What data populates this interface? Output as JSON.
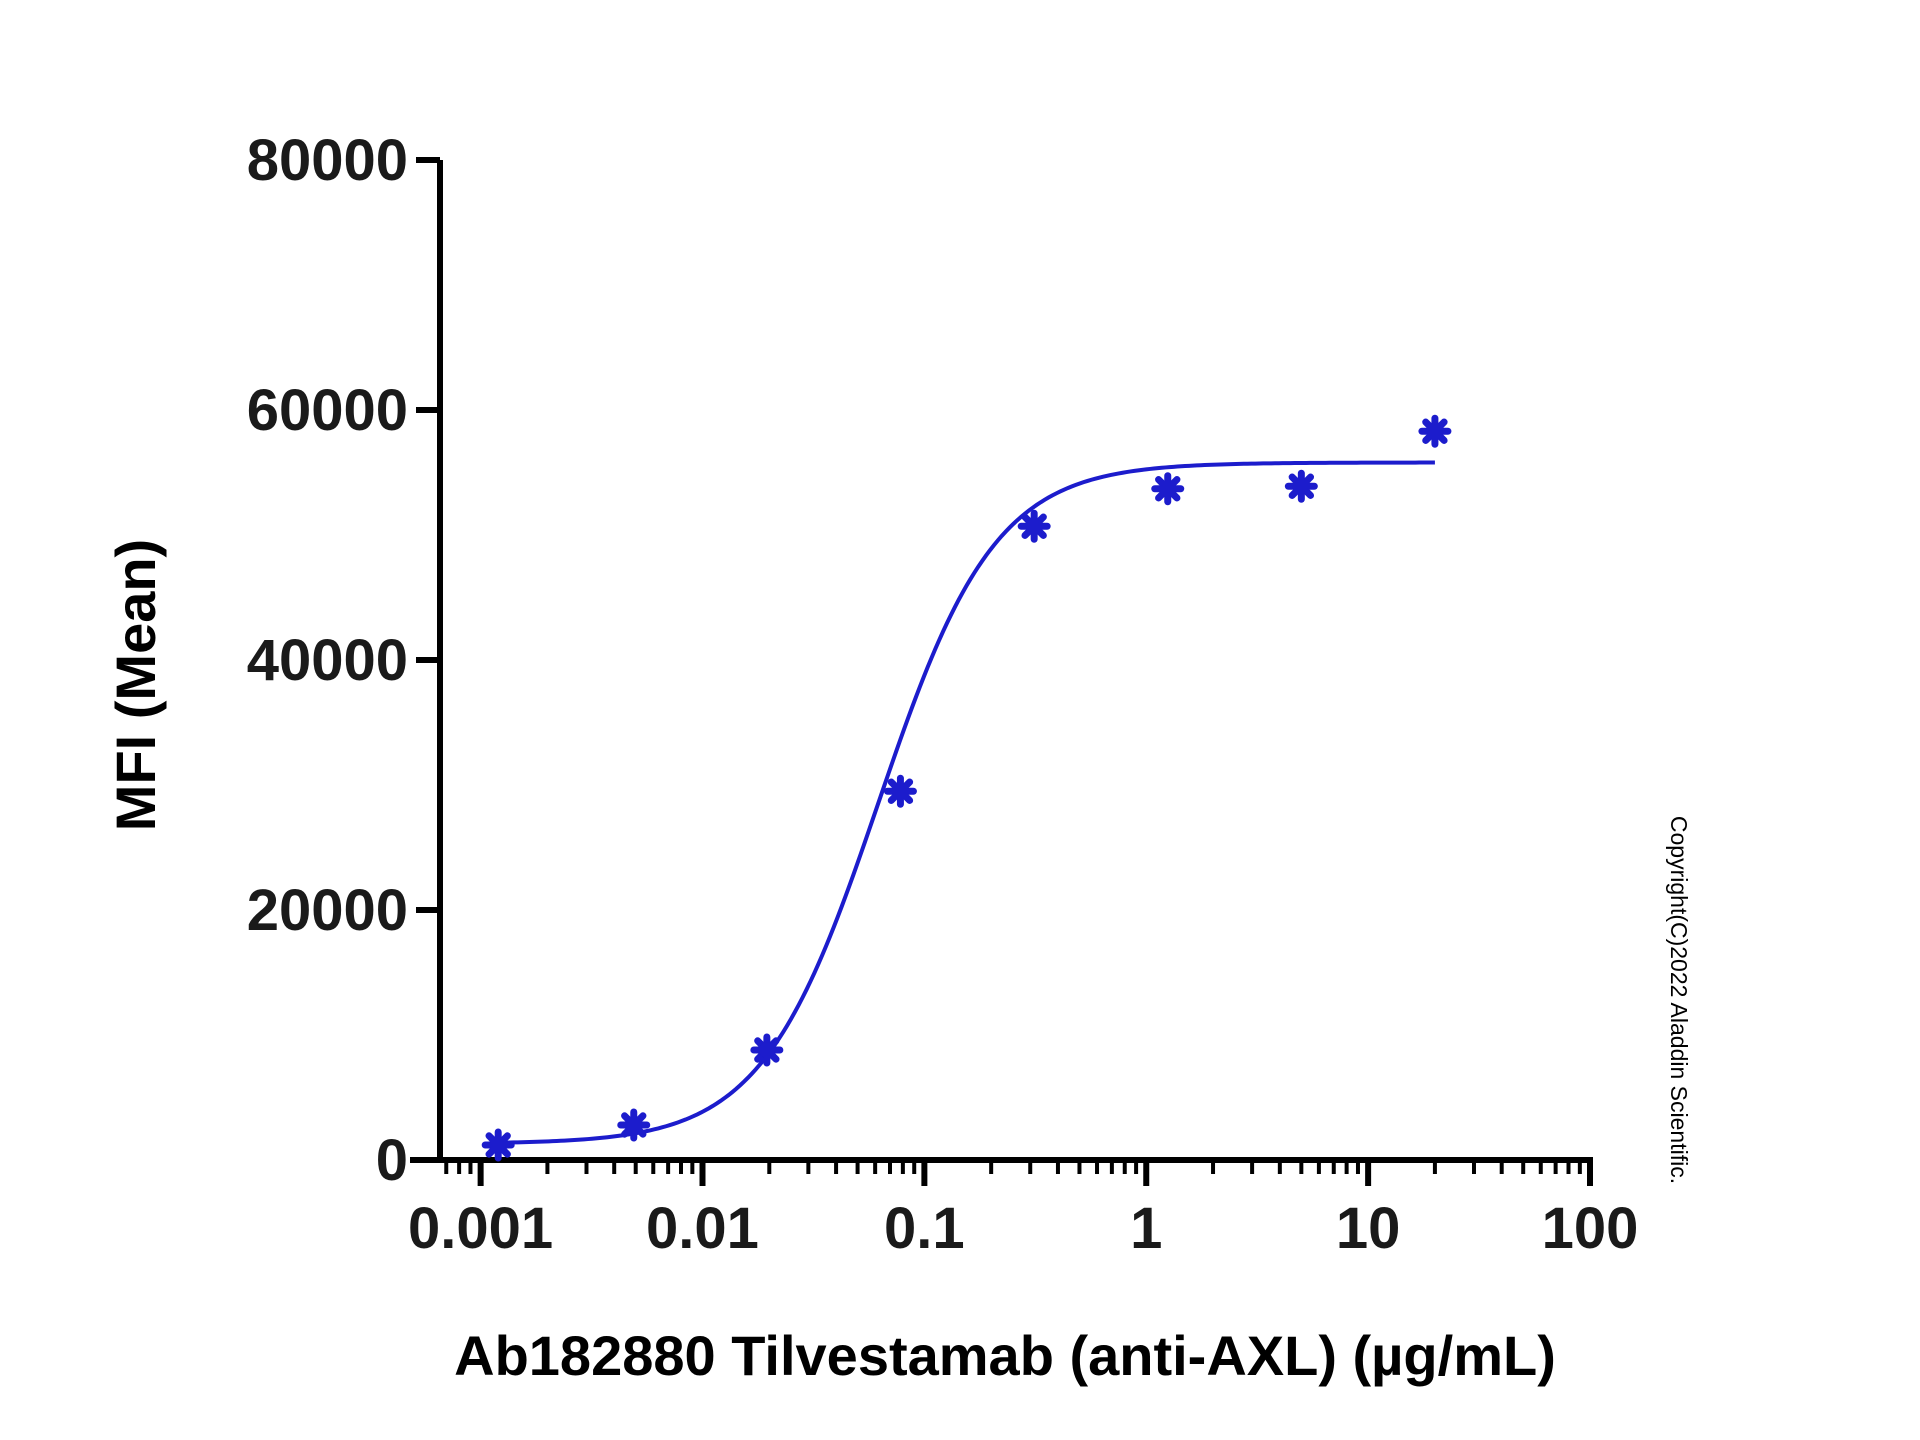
{
  "chart_data": {
    "type": "scatter",
    "xlabel": "Ab182880 Tilvestamab (anti-AXL) (µg/mL)",
    "ylabel": "MFI (Mean)",
    "xscale": "log",
    "xlim": [
      0.000656,
      100
    ],
    "ylim": [
      0,
      80000
    ],
    "x_ticks": [
      0.001,
      0.01,
      0.1,
      1,
      10,
      100
    ],
    "x_tick_labels": [
      "0.001",
      "0.01",
      "0.1",
      "1",
      "10",
      "100"
    ],
    "y_ticks": [
      0,
      20000,
      40000,
      60000,
      80000
    ],
    "y_tick_labels": [
      "0",
      "20000",
      "40000",
      "60000",
      "80000"
    ],
    "grid": false,
    "legend": "none",
    "series": [
      {
        "points": [
          {
            "x": 0.0012,
            "y": 1200
          },
          {
            "x": 0.0049,
            "y": 2800
          },
          {
            "x": 0.0195,
            "y": 8800
          },
          {
            "x": 0.078,
            "y": 29500
          },
          {
            "x": 0.3125,
            "y": 50700
          },
          {
            "x": 1.25,
            "y": 53700
          },
          {
            "x": 5,
            "y": 53900
          },
          {
            "x": 20,
            "y": 58300
          }
        ],
        "marker": "asterisk",
        "color": "#1c1ccc"
      }
    ],
    "fit_curve": {
      "model": "4PL",
      "bottom": 1300,
      "top": 55800,
      "ec50": 0.062,
      "hill": 1.65,
      "x_range": [
        0.0012,
        20
      ],
      "color": "#1c1ccc"
    }
  },
  "copyright": "Copyright(C)2022 Aladdin Scientific."
}
